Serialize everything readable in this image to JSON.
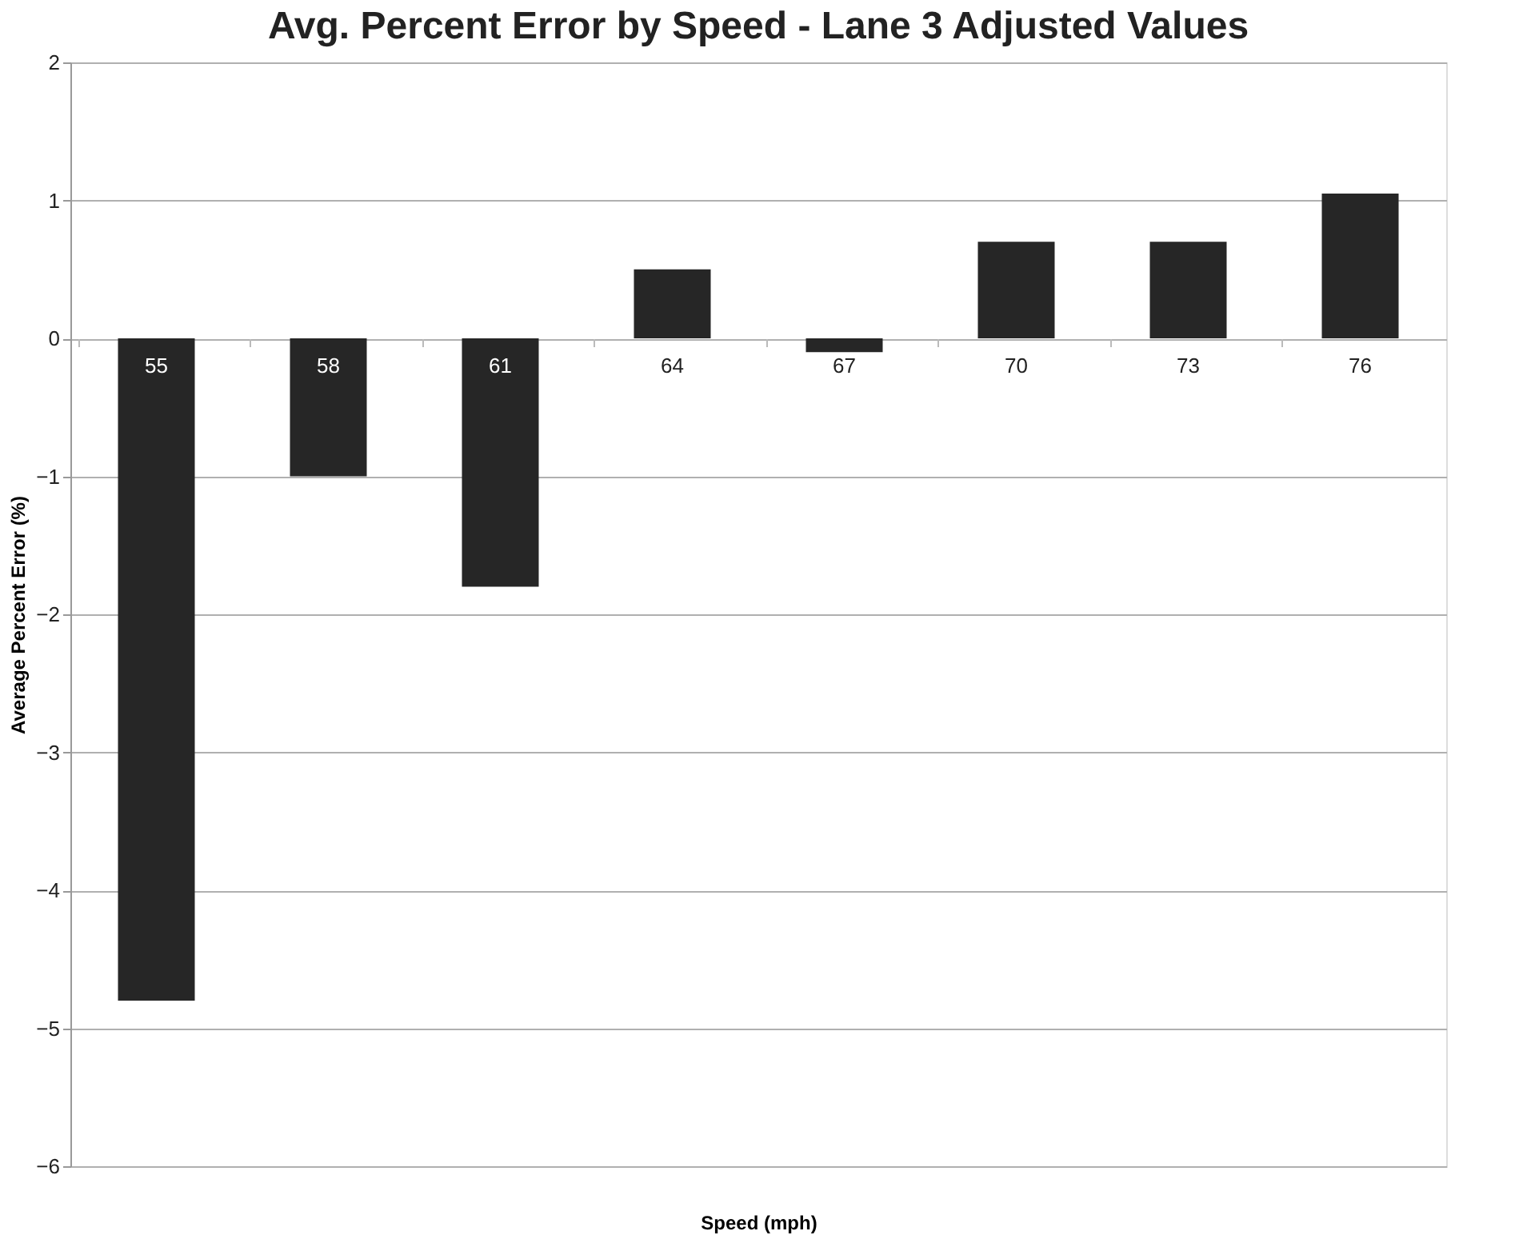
{
  "chart_data": {
    "type": "bar",
    "title": "Avg. Percent Error by Speed - Lane 3 Adjusted Values",
    "xlabel": "Speed (mph)",
    "ylabel": "Average Percent Error (%)",
    "categories": [
      "55",
      "58",
      "61",
      "64",
      "67",
      "70",
      "73",
      "76"
    ],
    "values": [
      -4.8,
      -1.0,
      -1.8,
      0.5,
      -0.1,
      0.7,
      0.7,
      1.05
    ],
    "color": "#262626",
    "ylim": [
      -6,
      2
    ],
    "yticks": [
      -6,
      -5,
      -4,
      -3,
      -2,
      -1,
      0,
      1,
      2
    ],
    "grid": "y"
  }
}
